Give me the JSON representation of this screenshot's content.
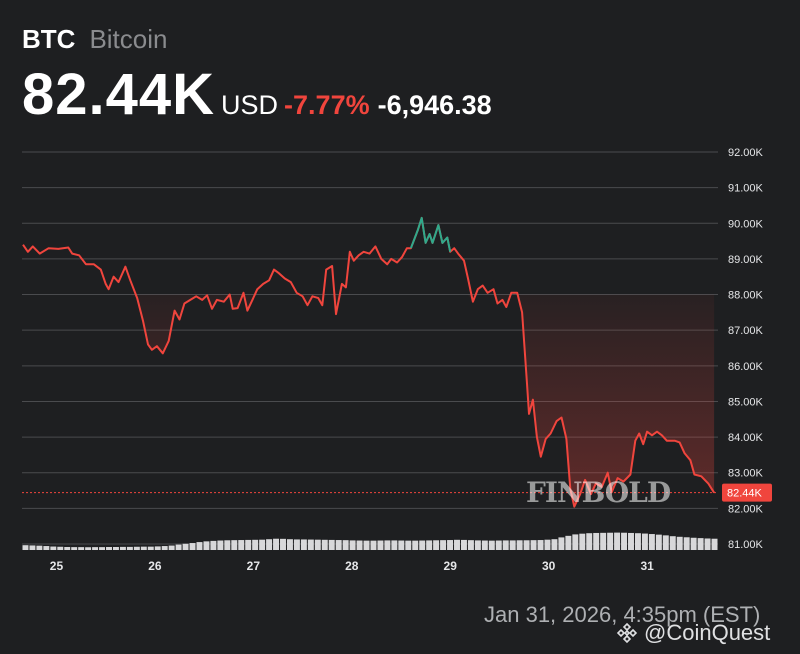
{
  "header": {
    "symbol": "BTC",
    "name": "Bitcoin",
    "price": "82.44K",
    "currency": "USD",
    "change_percent": "-7.77%",
    "change_value": "-6,946.38"
  },
  "footer": {
    "timestamp": "Jan 31, 2026, 4:35pm (EST)",
    "brand": "@CoinQuest"
  },
  "watermark": "FINBOLD",
  "colors": {
    "background": "#1e1f21",
    "down_line": "#f0453d",
    "up_line": "#2fa98b",
    "grid": "#4a4b4e",
    "volume": "#d8d8da"
  },
  "chart_data": {
    "type": "line",
    "title": "",
    "xlabel": "",
    "ylabel": "",
    "x_ticks": [
      "25",
      "26",
      "27",
      "28",
      "29",
      "30",
      "31"
    ],
    "y_ticks": [
      "92.00K",
      "91.00K",
      "90.00K",
      "89.00K",
      "88.00K",
      "87.00K",
      "86.00K",
      "85.00K",
      "84.00K",
      "83.00K",
      "82.00K",
      "81.00K"
    ],
    "ylim": [
      80.85,
      92.15
    ],
    "xlim": [
      24.65,
      31.72
    ],
    "current_price_label": "82.44K",
    "current_price": 82.44,
    "baseline": 88.0,
    "grid": true,
    "series": [
      {
        "values": [
          [
            24.66,
            89.4
          ],
          [
            24.71,
            89.2
          ],
          [
            24.76,
            89.35
          ],
          [
            24.83,
            89.15
          ],
          [
            24.92,
            89.3
          ],
          [
            25.02,
            89.28
          ],
          [
            25.12,
            89.32
          ],
          [
            25.16,
            89.15
          ],
          [
            25.23,
            89.1
          ],
          [
            25.3,
            88.85
          ],
          [
            25.38,
            88.85
          ],
          [
            25.45,
            88.7
          ],
          [
            25.5,
            88.3
          ],
          [
            25.53,
            88.15
          ],
          [
            25.58,
            88.5
          ],
          [
            25.63,
            88.35
          ],
          [
            25.7,
            88.78
          ],
          [
            25.75,
            88.4
          ],
          [
            25.82,
            87.9
          ],
          [
            25.88,
            87.25
          ],
          [
            25.93,
            86.6
          ],
          [
            25.97,
            86.45
          ],
          [
            26.02,
            86.55
          ],
          [
            26.08,
            86.35
          ],
          [
            26.14,
            86.7
          ],
          [
            26.2,
            87.55
          ],
          [
            26.25,
            87.3
          ],
          [
            26.3,
            87.75
          ],
          [
            26.36,
            87.85
          ],
          [
            26.42,
            87.95
          ],
          [
            26.48,
            87.85
          ],
          [
            26.53,
            87.98
          ],
          [
            26.58,
            87.6
          ],
          [
            26.63,
            87.85
          ],
          [
            26.7,
            87.8
          ],
          [
            26.76,
            88.0
          ],
          [
            26.79,
            87.6
          ],
          [
            26.84,
            87.62
          ],
          [
            26.9,
            88.05
          ],
          [
            26.94,
            87.55
          ],
          [
            26.99,
            87.85
          ],
          [
            27.04,
            88.15
          ],
          [
            27.1,
            88.3
          ],
          [
            27.16,
            88.4
          ],
          [
            27.21,
            88.7
          ],
          [
            27.26,
            88.6
          ],
          [
            27.32,
            88.45
          ],
          [
            27.38,
            88.35
          ],
          [
            27.44,
            88.05
          ],
          [
            27.5,
            87.95
          ],
          [
            27.55,
            87.7
          ],
          [
            27.6,
            87.95
          ],
          [
            27.66,
            87.9
          ],
          [
            27.7,
            87.7
          ],
          [
            27.74,
            88.7
          ],
          [
            27.8,
            88.8
          ],
          [
            27.84,
            87.45
          ],
          [
            27.9,
            88.3
          ],
          [
            27.94,
            88.2
          ],
          [
            27.98,
            89.2
          ],
          [
            28.02,
            88.95
          ],
          [
            28.07,
            89.1
          ],
          [
            28.12,
            89.2
          ],
          [
            28.18,
            89.15
          ],
          [
            28.24,
            89.35
          ],
          [
            28.3,
            89.0
          ],
          [
            28.36,
            88.85
          ],
          [
            28.4,
            89.0
          ],
          [
            28.46,
            88.9
          ],
          [
            28.51,
            89.05
          ],
          [
            28.56,
            89.3
          ],
          [
            28.6,
            89.3
          ],
          [
            28.67,
            89.8
          ],
          [
            28.71,
            90.15
          ],
          [
            28.75,
            89.45
          ],
          [
            28.79,
            89.7
          ],
          [
            28.82,
            89.45
          ],
          [
            28.88,
            89.95
          ],
          [
            28.92,
            89.45
          ],
          [
            28.97,
            89.6
          ],
          [
            29.0,
            89.2
          ],
          [
            29.04,
            89.3
          ],
          [
            29.08,
            89.15
          ],
          [
            29.14,
            88.95
          ],
          [
            29.18,
            88.45
          ],
          [
            29.23,
            87.8
          ],
          [
            29.28,
            88.15
          ],
          [
            29.33,
            88.25
          ],
          [
            29.38,
            88.05
          ],
          [
            29.44,
            88.15
          ],
          [
            29.48,
            87.75
          ],
          [
            29.53,
            87.85
          ],
          [
            29.57,
            87.65
          ],
          [
            29.62,
            88.05
          ],
          [
            29.68,
            88.05
          ],
          [
            29.73,
            87.5
          ],
          [
            29.78,
            85.5
          ],
          [
            29.8,
            84.65
          ],
          [
            29.84,
            85.05
          ],
          [
            29.88,
            84.0
          ],
          [
            29.92,
            83.45
          ],
          [
            29.97,
            83.95
          ],
          [
            30.02,
            84.1
          ],
          [
            30.08,
            84.45
          ],
          [
            30.13,
            84.55
          ],
          [
            30.18,
            83.95
          ],
          [
            30.22,
            82.55
          ],
          [
            30.26,
            82.05
          ],
          [
            30.32,
            82.4
          ],
          [
            30.37,
            82.8
          ],
          [
            30.43,
            82.4
          ],
          [
            30.48,
            82.7
          ],
          [
            30.54,
            82.6
          ],
          [
            30.6,
            83.0
          ],
          [
            30.64,
            82.45
          ],
          [
            30.7,
            82.85
          ],
          [
            30.76,
            82.75
          ],
          [
            30.83,
            82.95
          ],
          [
            30.88,
            83.9
          ],
          [
            30.92,
            84.1
          ],
          [
            30.96,
            83.8
          ],
          [
            31.0,
            84.15
          ],
          [
            31.05,
            84.05
          ],
          [
            31.1,
            84.15
          ],
          [
            31.15,
            84.05
          ],
          [
            31.2,
            83.9
          ],
          [
            31.28,
            83.9
          ],
          [
            31.33,
            83.85
          ],
          [
            31.38,
            83.55
          ],
          [
            31.44,
            83.35
          ],
          [
            31.48,
            82.95
          ],
          [
            31.55,
            82.9
          ],
          [
            31.62,
            82.7
          ],
          [
            31.68,
            82.44
          ]
        ]
      }
    ],
    "up_segment_x_range": [
      28.6,
      29.0
    ],
    "volume": [
      0.4,
      0.38,
      0.36,
      0.33,
      0.29,
      0.27,
      0.25,
      0.24,
      0.24,
      0.23,
      0.24,
      0.24,
      0.25,
      0.25,
      0.26,
      0.26,
      0.27,
      0.28,
      0.28,
      0.3,
      0.33,
      0.37,
      0.45,
      0.52,
      0.58,
      0.66,
      0.72,
      0.76,
      0.79,
      0.81,
      0.82,
      0.83,
      0.84,
      0.85,
      0.86,
      0.9,
      0.94,
      0.93,
      0.9,
      0.88,
      0.88,
      0.87,
      0.86,
      0.85,
      0.84,
      0.83,
      0.82,
      0.8,
      0.79,
      0.78,
      0.78,
      0.79,
      0.8,
      0.8,
      0.79,
      0.78,
      0.78,
      0.79,
      0.8,
      0.81,
      0.82,
      0.83,
      0.85,
      0.84,
      0.82,
      0.8,
      0.79,
      0.78,
      0.79,
      0.8,
      0.8,
      0.81,
      0.81,
      0.82,
      0.83,
      0.86,
      0.9,
      1.05,
      1.18,
      1.3,
      1.36,
      1.4,
      1.42,
      1.43,
      1.44,
      1.45,
      1.44,
      1.42,
      1.4,
      1.37,
      1.33,
      1.28,
      1.22,
      1.15,
      1.1,
      1.06,
      1.02,
      0.99,
      0.96,
      0.94
    ]
  }
}
